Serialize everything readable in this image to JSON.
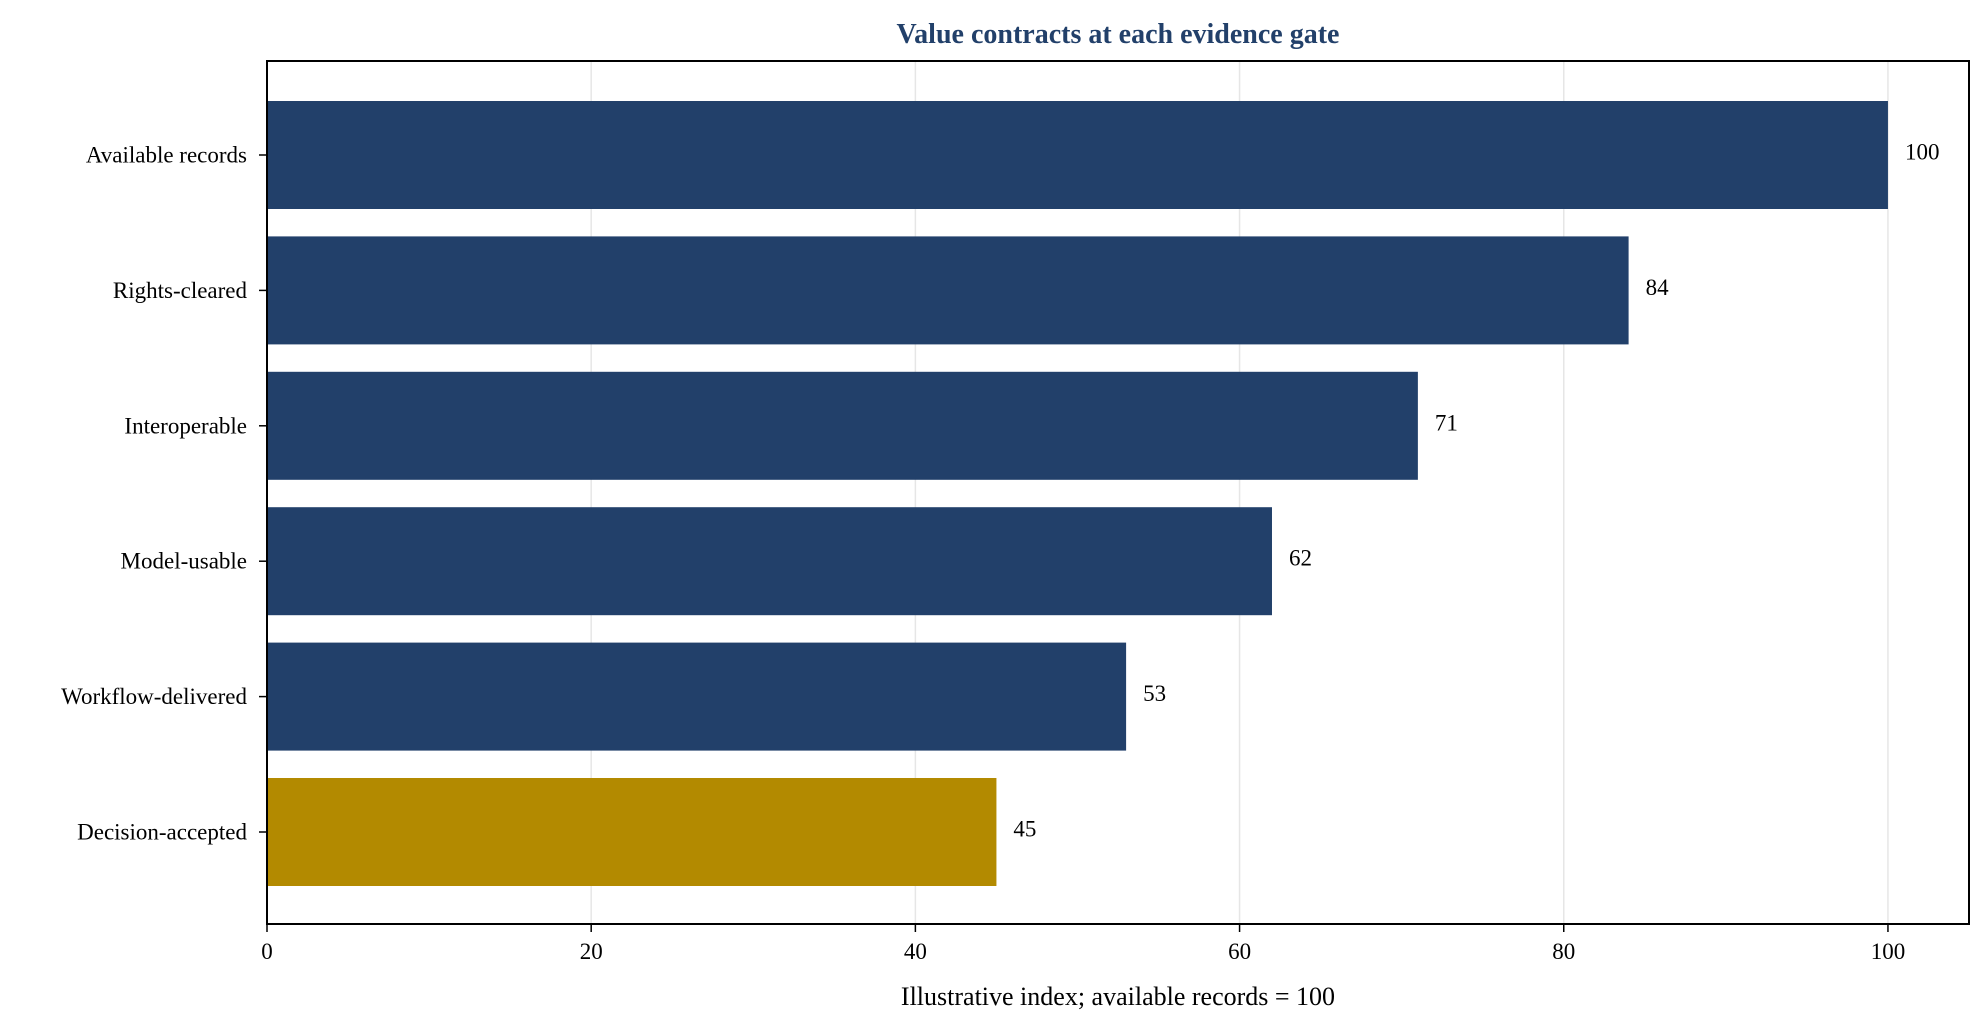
{
  "chart_data": {
    "type": "bar",
    "orientation": "horizontal",
    "title": "Value contracts at each evidence gate",
    "xlabel": "Illustrative index; available records = 100",
    "ylabel": "",
    "categories": [
      "Available records",
      "Rights-cleared",
      "Interoperable",
      "Model-usable",
      "Workflow-delivered",
      "Decision-accepted"
    ],
    "values": [
      100,
      84,
      71,
      62,
      53,
      45
    ],
    "data_labels": [
      "100",
      "84",
      "71",
      "62",
      "53",
      "45"
    ],
    "xlim": [
      0,
      105
    ],
    "xticks": [
      0,
      20,
      40,
      60,
      80,
      100
    ],
    "xtick_labels": [
      "0",
      "20",
      "40",
      "60",
      "80",
      "100"
    ],
    "grid": "vertical",
    "colors": {
      "bar": "#22406a",
      "highlight": "#b38a00",
      "title": "#22406a",
      "grid": "#e6e6e6"
    },
    "highlight_category": "Decision-accepted"
  }
}
